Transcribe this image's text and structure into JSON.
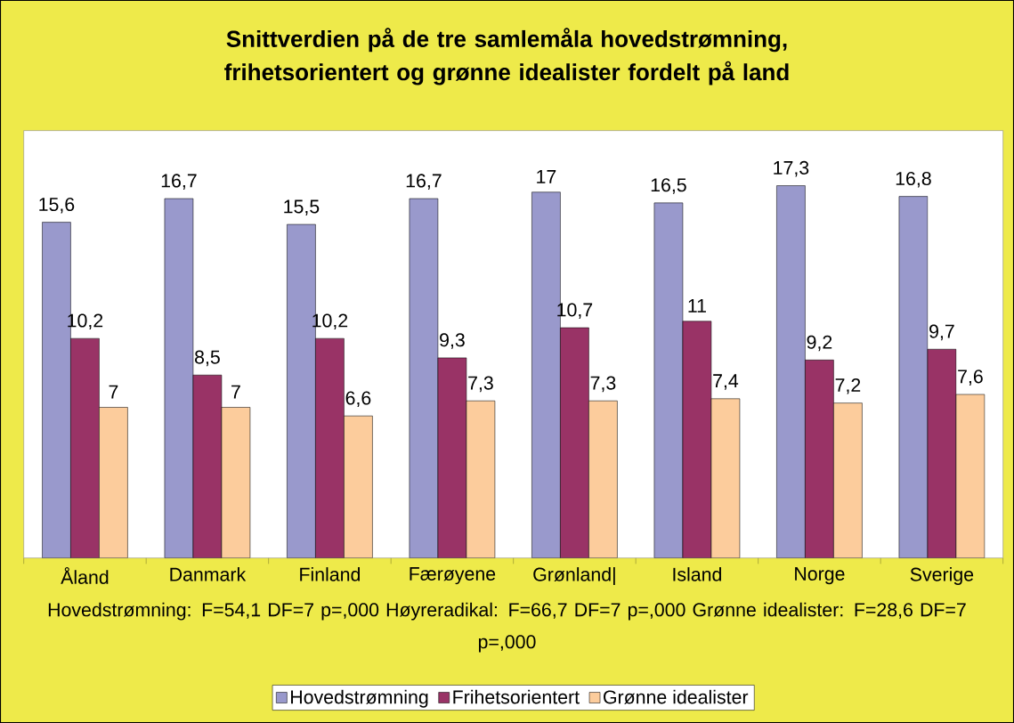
{
  "chart_data": {
    "type": "bar",
    "title": "Snittverdien på de tre samlemåla hovedstrømning, frihetsorientert og grønne idealister fordelt på land",
    "categories": [
      "Åland",
      "Danmark",
      "Finland",
      "Færøyene",
      "Grønland|",
      "Island",
      "Norge",
      "Sverige"
    ],
    "series": [
      {
        "name": "Hovedstrømning",
        "color": "#9999cc",
        "values": [
          15.6,
          16.7,
          15.5,
          16.7,
          17,
          16.5,
          17.3,
          16.8
        ],
        "value_labels": [
          "15,6",
          "16,7",
          "15,5",
          "16,7",
          "17",
          "16,5",
          "17,3",
          "16,8"
        ]
      },
      {
        "name": "Frihetsorientert",
        "color": "#993366",
        "values": [
          10.2,
          8.5,
          10.2,
          9.3,
          10.7,
          11,
          9.2,
          9.7
        ],
        "value_labels": [
          "10,2",
          "8,5",
          "10,2",
          "9,3",
          "10,7",
          "11",
          "9,2",
          "9,7"
        ]
      },
      {
        "name": "Grønne idealister",
        "color": "#fccc9c",
        "values": [
          7,
          7,
          6.6,
          7.3,
          7.3,
          7.4,
          7.2,
          7.6
        ],
        "value_labels": [
          "7",
          "7",
          "6,6",
          "7,3",
          "7,3",
          "7,4",
          "7,2",
          "7,6"
        ]
      }
    ],
    "legend": "bottom",
    "annotations": [
      "Hovedstrømning: F=54,1 DF=7 p=,000 Høyreradikal: F=66,7 DF=7 p=,000 Grønne idealister: F=28,6 DF=7 p=,000"
    ]
  }
}
